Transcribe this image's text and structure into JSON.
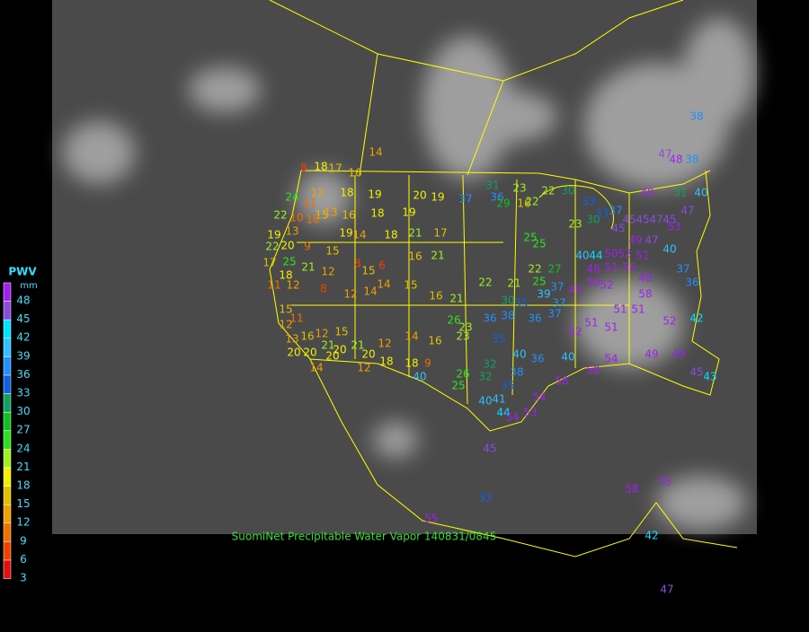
{
  "legend": {
    "title": "PWV",
    "unit": "mm",
    "ticks": [
      48,
      45,
      42,
      39,
      36,
      33,
      30,
      27,
      24,
      21,
      18,
      15,
      12,
      9,
      6,
      3
    ],
    "colors": [
      "#a020f0",
      "#8a4be0",
      "#00e0ff",
      "#30c0ff",
      "#2090ff",
      "#1060e0",
      "#10a060",
      "#10c020",
      "#30e020",
      "#a0f020",
      "#f0f000",
      "#e0c000",
      "#f0a000",
      "#f07000",
      "#f04000",
      "#e01010"
    ]
  },
  "caption": "SuomiNet Precipitable Water Vapor 140831/0845",
  "stations": [
    14,
    8,
    18,
    17,
    16,
    12,
    18,
    19,
    20,
    19,
    37,
    31,
    36,
    29,
    23,
    16,
    22,
    22,
    24,
    11,
    15,
    13,
    16,
    18,
    19,
    18,
    21,
    17,
    22,
    10,
    10,
    19,
    14,
    13,
    19,
    22,
    20,
    9,
    15,
    8,
    6,
    16,
    21,
    17,
    25,
    21,
    18,
    12,
    15,
    14,
    15,
    16,
    11,
    12,
    8,
    12,
    14,
    21,
    22,
    21,
    22,
    27,
    25,
    37,
    25,
    25,
    23,
    30,
    33,
    30,
    33,
    37,
    45,
    45,
    47,
    45,
    45,
    49,
    47,
    53,
    47,
    48,
    31,
    47,
    48,
    38,
    38,
    40,
    40,
    44,
    50,
    52,
    51,
    40,
    48,
    51,
    56,
    48,
    37,
    36,
    50,
    52,
    58,
    49,
    37,
    39,
    35,
    30,
    38,
    36,
    37,
    51,
    51,
    52,
    42,
    51,
    52,
    51,
    36,
    15,
    11,
    12,
    13,
    16,
    12,
    15,
    20,
    21,
    20,
    21,
    12,
    14,
    16,
    26,
    23,
    23,
    20,
    20,
    20,
    12,
    18,
    18,
    9,
    40,
    14,
    26,
    25,
    32,
    32,
    35,
    40,
    36,
    38,
    35,
    40,
    58,
    54,
    49,
    49,
    45,
    43,
    41,
    40,
    44,
    54,
    53,
    54,
    58,
    45,
    33,
    58,
    55,
    55,
    42,
    47
  ]
}
